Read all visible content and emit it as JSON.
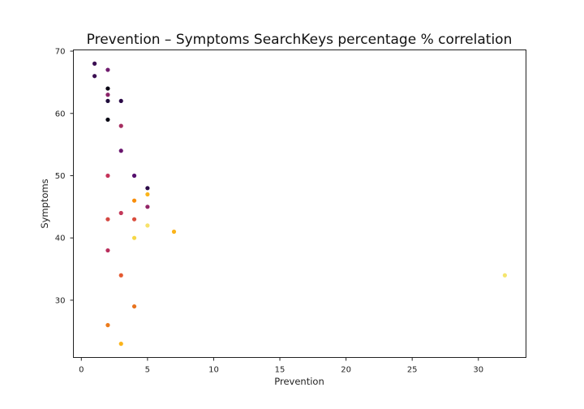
{
  "chart_data": {
    "type": "scatter",
    "title": "Prevention – Symptoms SearchKeys percentage % correlation",
    "xlabel": "Prevention",
    "ylabel": "Symptoms",
    "xlim": [
      -0.6,
      33.6
    ],
    "ylim": [
      20.8,
      70.2
    ],
    "xticks": [
      0,
      5,
      10,
      15,
      20,
      25,
      30
    ],
    "yticks": [
      30,
      40,
      50,
      60,
      70
    ],
    "grid": false,
    "legend": "none",
    "points": [
      {
        "x": 1,
        "y": 68,
        "color": "#3b0f52"
      },
      {
        "x": 1,
        "y": 66,
        "color": "#3b0f52"
      },
      {
        "x": 2,
        "y": 67,
        "color": "#701c6e"
      },
      {
        "x": 2,
        "y": 64,
        "color": "#0a0414"
      },
      {
        "x": 2,
        "y": 63,
        "color": "#8c2369"
      },
      {
        "x": 2,
        "y": 62,
        "color": "#1f0c3b"
      },
      {
        "x": 3,
        "y": 62,
        "color": "#2b0a47"
      },
      {
        "x": 2,
        "y": 59,
        "color": "#050312"
      },
      {
        "x": 3,
        "y": 58,
        "color": "#a62d60"
      },
      {
        "x": 3,
        "y": 54,
        "color": "#6a176e"
      },
      {
        "x": 2,
        "y": 50,
        "color": "#c5345a"
      },
      {
        "x": 4,
        "y": 50,
        "color": "#56106e"
      },
      {
        "x": 5,
        "y": 48,
        "color": "#2c0b48"
      },
      {
        "x": 5,
        "y": 47,
        "color": "#fbb41a"
      },
      {
        "x": 4,
        "y": 46,
        "color": "#f98e09"
      },
      {
        "x": 5,
        "y": 45,
        "color": "#932567"
      },
      {
        "x": 3,
        "y": 44,
        "color": "#c3395a"
      },
      {
        "x": 2,
        "y": 43,
        "color": "#d44842"
      },
      {
        "x": 4,
        "y": 43,
        "color": "#da4d3d"
      },
      {
        "x": 5,
        "y": 42,
        "color": "#f7e26a"
      },
      {
        "x": 7,
        "y": 41,
        "color": "#fbb41a"
      },
      {
        "x": 4,
        "y": 40,
        "color": "#f6d746"
      },
      {
        "x": 2,
        "y": 38,
        "color": "#b92e5c"
      },
      {
        "x": 3,
        "y": 34,
        "color": "#e45a31"
      },
      {
        "x": 32,
        "y": 34,
        "color": "#f5e56d"
      },
      {
        "x": 4,
        "y": 29,
        "color": "#e8731f"
      },
      {
        "x": 2,
        "y": 26,
        "color": "#ec7b1c"
      },
      {
        "x": 3,
        "y": 23,
        "color": "#fbb41a"
      }
    ]
  }
}
